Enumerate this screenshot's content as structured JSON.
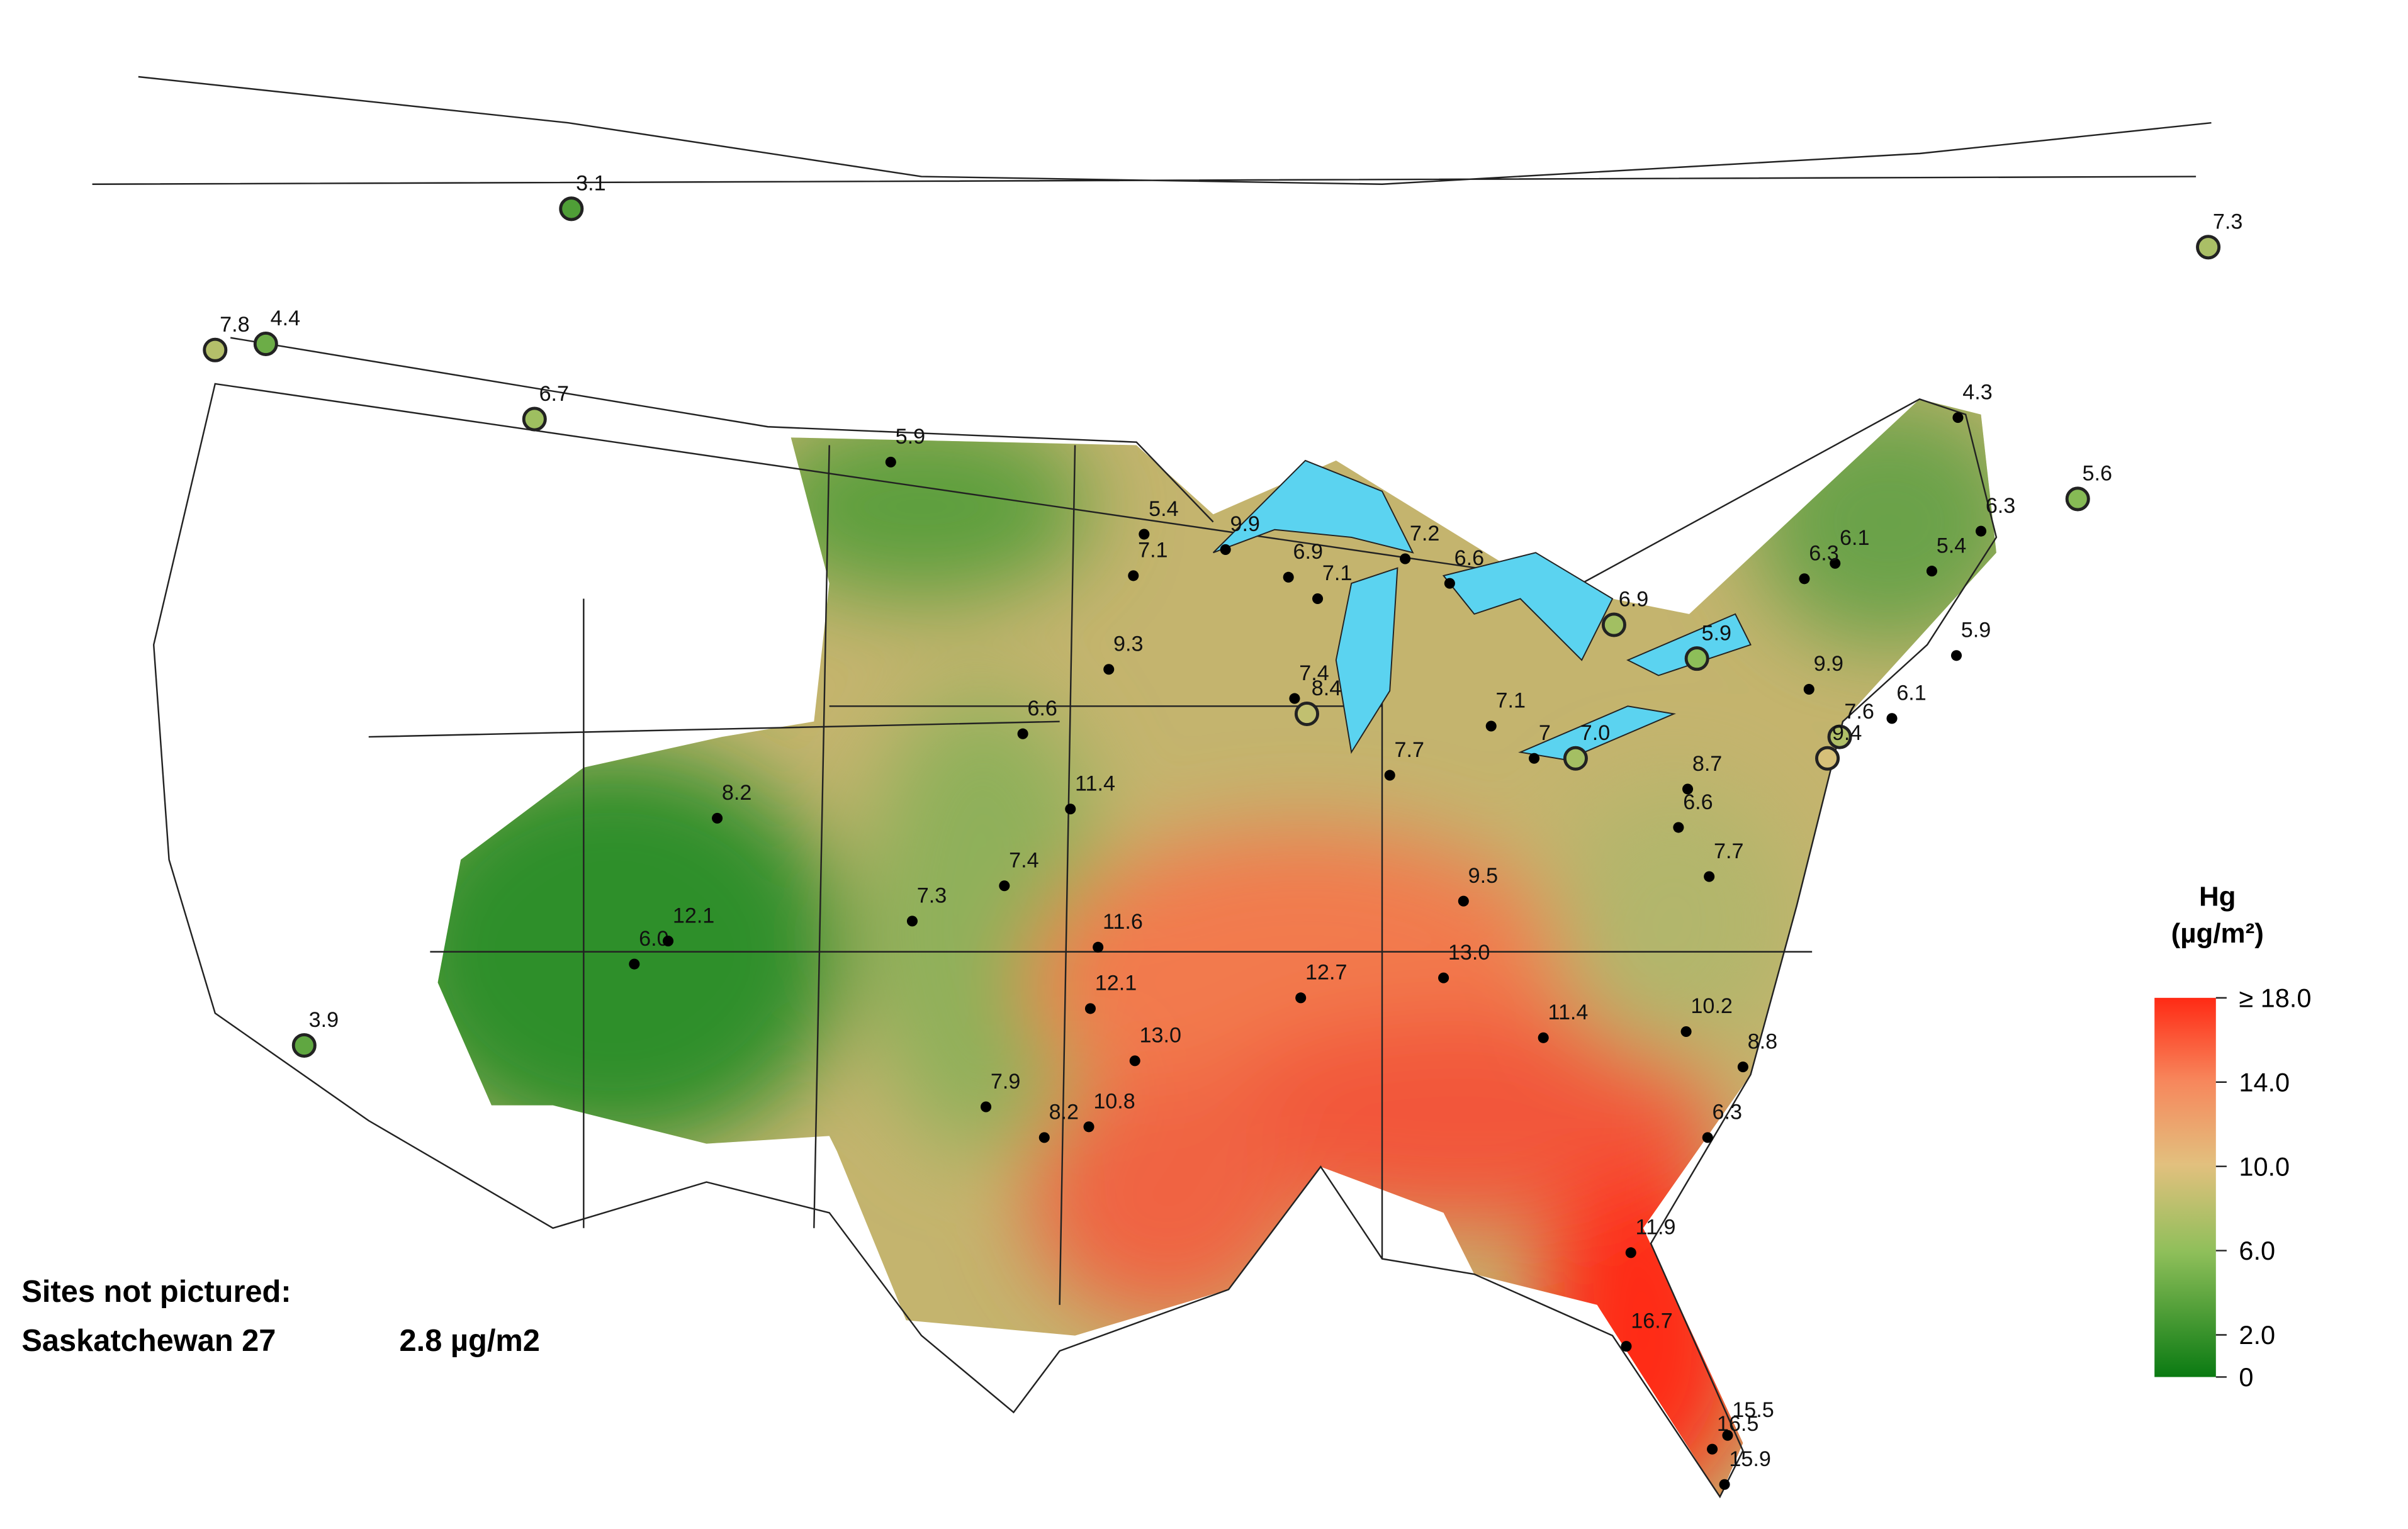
{
  "map": {
    "legend": {
      "title": "Hg",
      "unit": "(µg/m²)",
      "ticks": [
        {
          "value": 18,
          "label": "≥ 18.0"
        },
        {
          "value": 14,
          "label": "14.0"
        },
        {
          "value": 10,
          "label": "10.0"
        },
        {
          "value": 6,
          "label": "6.0"
        },
        {
          "value": 2,
          "label": "2.0"
        },
        0
      ],
      "range": [
        0,
        18
      ]
    },
    "note": {
      "heading": "Sites not pictured:",
      "site": "Saskatchewan 27",
      "value_label": "2.8 µg/m2"
    },
    "sites": {
      "values": [
        3.1,
        7.8,
        4.4,
        6.7,
        3.9,
        7.3,
        5.6,
        5.9,
        5.4,
        7.1,
        9.9,
        6.9,
        7.1,
        7.2,
        6.6,
        6.9,
        9.3,
        7.4,
        8.4,
        6.6,
        7.1,
        7,
        7.0,
        7.7,
        5.9,
        4.3,
        6.3,
        6.1,
        5.4,
        6.3,
        5.9,
        9.9,
        6.1,
        7.6,
        9.4,
        8.7,
        6.6,
        7.7,
        8.2,
        11.4,
        7.4,
        7.3,
        11.6,
        6.0,
        12.1,
        12.1,
        12.7,
        9.5,
        13.0,
        11.4,
        10.2,
        8.8,
        13.0,
        7.9,
        8.2,
        10.8,
        6.3,
        11.9,
        16.7,
        16.5,
        15.5,
        15.9
      ],
      "value_labels": [
        "3.1",
        "7.8",
        "4.4",
        "6.7",
        "3.9",
        "7.3",
        "5.6",
        "5.9",
        "5.4",
        "7.1",
        "9.9",
        "6.9",
        "7.1",
        "7.2",
        "6.6",
        "6.9",
        "9.3",
        "7.4",
        "8.4",
        "6.6",
        "7.1",
        "7",
        "7.0",
        "7.7",
        "5.9",
        "4.3",
        "6.3",
        "6.1",
        "5.4",
        "6.3",
        "5.9",
        "9.9",
        "6.1",
        "7.6",
        "9.4",
        "8.7",
        "6.6",
        "7.7",
        "8.2",
        "11.4",
        "7.4",
        "7.3",
        "11.6",
        "6.0",
        "12.1",
        "12.1",
        "12.7",
        "9.5",
        "13.0",
        "11.4",
        "10.2",
        "8.8",
        "13.0",
        "7.9",
        "8.2",
        "10.8",
        "6.3",
        "11.9",
        "16.7",
        "16.5",
        "15.5",
        "15.9"
      ]
    }
  }
}
